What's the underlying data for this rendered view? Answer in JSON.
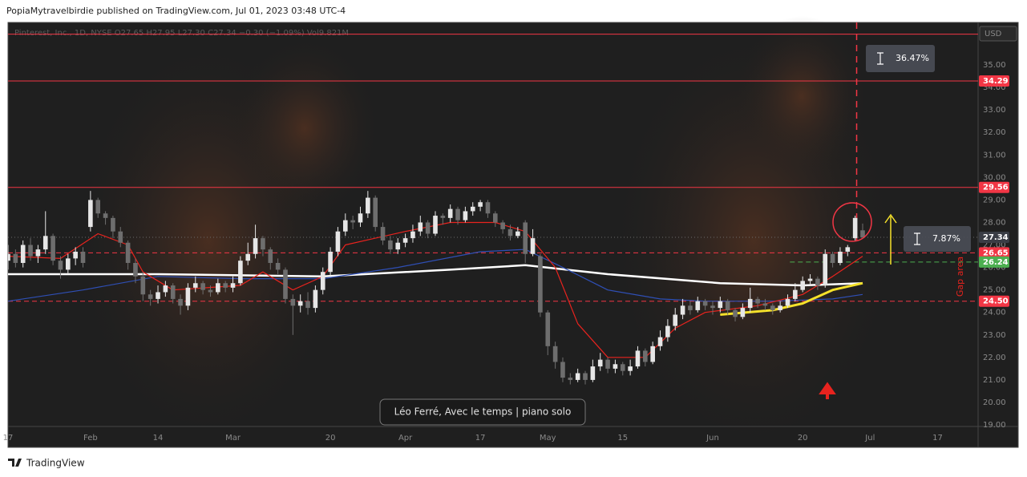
{
  "header": "PopiaMytravelbirdie published on TradingView.com, Jul 01, 2023 03:48 UTC-4",
  "footer": "TradingView",
  "chart_data": {
    "type": "candlestick",
    "legend": "Pinterest, Inc., 1D, NYSE  O27.65  H27.95  L27.30  C27.34  −0.30 (−1.09%)  Vol9.821M",
    "currency": "USD",
    "xlim": [
      0,
      129.4
    ],
    "ylim": [
      18.93,
      36.89
    ],
    "xticks": [
      {
        "value": 0,
        "label": "17"
      },
      {
        "value": 11,
        "label": "Feb"
      },
      {
        "value": 20,
        "label": "14"
      },
      {
        "value": 30,
        "label": "Mar"
      },
      {
        "value": 43,
        "label": "20"
      },
      {
        "value": 53,
        "label": "Apr"
      },
      {
        "value": 63,
        "label": "17"
      },
      {
        "value": 72,
        "label": "May"
      },
      {
        "value": 82,
        "label": "15"
      },
      {
        "value": 94,
        "label": "Jun"
      },
      {
        "value": 106,
        "label": "20"
      },
      {
        "value": 115,
        "label": "Jul"
      },
      {
        "value": 124,
        "label": "17"
      }
    ],
    "yticks": [
      {
        "value": 19,
        "label": "19.00"
      },
      {
        "value": 20,
        "label": "20.00"
      },
      {
        "value": 21,
        "label": "21.00"
      },
      {
        "value": 22,
        "label": "22.00"
      },
      {
        "value": 23,
        "label": "23.00"
      },
      {
        "value": 24,
        "label": "24.00"
      },
      {
        "value": 25,
        "label": "25.00"
      },
      {
        "value": 26,
        "label": "26.00"
      },
      {
        "value": 27,
        "label": "27.00"
      },
      {
        "value": 28,
        "label": "28.00"
      },
      {
        "value": 29,
        "label": "29.00"
      },
      {
        "value": 30,
        "label": "30.00"
      },
      {
        "value": 31,
        "label": "31.00"
      },
      {
        "value": 32,
        "label": "32.00"
      },
      {
        "value": 33,
        "label": "33.00"
      },
      {
        "value": 34,
        "label": "34.00"
      },
      {
        "value": 35,
        "label": "35.00"
      }
    ],
    "up_color": "#e6e6e6",
    "down_color": "#6e6e6e",
    "candles": [
      [
        26.3,
        27.0,
        25.9,
        26.6
      ],
      [
        26.6,
        26.8,
        26.0,
        26.2
      ],
      [
        26.2,
        27.2,
        26.0,
        27.0
      ],
      [
        27.0,
        27.3,
        26.3,
        26.5
      ],
      [
        26.5,
        27.0,
        26.2,
        26.8
      ],
      [
        26.8,
        28.5,
        26.6,
        27.4
      ],
      [
        27.4,
        27.5,
        26.1,
        26.3
      ],
      [
        26.3,
        26.5,
        25.5,
        25.9
      ],
      [
        25.9,
        26.6,
        25.7,
        26.4
      ],
      [
        26.4,
        26.9,
        26.1,
        26.7
      ],
      [
        26.7,
        26.9,
        26.0,
        26.2
      ],
      [
        27.8,
        29.4,
        27.6,
        29.0
      ],
      [
        29.0,
        29.1,
        28.2,
        28.4
      ],
      [
        28.4,
        28.5,
        27.9,
        28.2
      ],
      [
        28.2,
        28.3,
        27.3,
        27.6
      ],
      [
        27.6,
        27.8,
        26.9,
        27.1
      ],
      [
        27.1,
        27.2,
        25.9,
        26.2
      ],
      [
        26.2,
        26.4,
        25.3,
        25.6
      ],
      [
        25.6,
        25.8,
        24.5,
        24.8
      ],
      [
        24.8,
        25.0,
        24.3,
        24.6
      ],
      [
        24.6,
        25.2,
        24.4,
        24.9
      ],
      [
        24.9,
        25.4,
        24.7,
        25.2
      ],
      [
        25.2,
        25.3,
        24.4,
        24.6
      ],
      [
        24.6,
        24.8,
        23.9,
        24.3
      ],
      [
        24.3,
        25.3,
        24.1,
        25.1
      ],
      [
        25.1,
        25.6,
        24.9,
        25.3
      ],
      [
        25.3,
        25.4,
        24.8,
        25.0
      ],
      [
        25.0,
        25.2,
        24.7,
        24.9
      ],
      [
        24.9,
        25.5,
        24.8,
        25.3
      ],
      [
        25.3,
        25.4,
        24.9,
        25.1
      ],
      [
        25.1,
        25.6,
        24.9,
        25.3
      ],
      [
        25.3,
        26.5,
        25.2,
        26.3
      ],
      [
        26.3,
        27.1,
        26.1,
        26.6
      ],
      [
        26.6,
        27.9,
        26.4,
        27.3
      ],
      [
        27.3,
        27.4,
        26.5,
        26.8
      ],
      [
        26.8,
        26.9,
        25.9,
        26.2
      ],
      [
        26.2,
        26.4,
        25.7,
        25.9
      ],
      [
        25.9,
        26.0,
        24.4,
        24.6
      ],
      [
        24.6,
        24.8,
        23.0,
        24.3
      ],
      [
        24.3,
        24.8,
        24.0,
        24.5
      ],
      [
        24.5,
        24.9,
        23.9,
        24.2
      ],
      [
        24.2,
        25.2,
        24.0,
        25.0
      ],
      [
        25.0,
        26.0,
        24.8,
        25.8
      ],
      [
        25.8,
        26.9,
        25.6,
        26.7
      ],
      [
        26.7,
        27.8,
        26.5,
        27.6
      ],
      [
        27.6,
        28.4,
        27.4,
        28.1
      ],
      [
        28.1,
        28.3,
        27.7,
        28.0
      ],
      [
        28.0,
        28.7,
        27.8,
        28.4
      ],
      [
        28.4,
        29.4,
        28.2,
        29.1
      ],
      [
        29.1,
        29.2,
        27.6,
        27.8
      ],
      [
        27.8,
        28.0,
        27.0,
        27.2
      ],
      [
        27.2,
        27.4,
        26.6,
        26.8
      ],
      [
        26.8,
        27.3,
        26.6,
        27.1
      ],
      [
        27.1,
        27.5,
        26.9,
        27.3
      ],
      [
        27.3,
        27.9,
        27.1,
        27.6
      ],
      [
        27.6,
        28.3,
        27.4,
        28.0
      ],
      [
        28.0,
        28.1,
        27.3,
        27.5
      ],
      [
        27.5,
        28.5,
        27.4,
        28.3
      ],
      [
        28.3,
        28.4,
        27.9,
        28.2
      ],
      [
        28.2,
        28.8,
        28.0,
        28.6
      ],
      [
        28.6,
        28.7,
        27.9,
        28.1
      ],
      [
        28.1,
        28.7,
        28.0,
        28.5
      ],
      [
        28.5,
        28.9,
        28.3,
        28.7
      ],
      [
        28.7,
        29.0,
        28.5,
        28.9
      ],
      [
        28.9,
        29.0,
        28.2,
        28.4
      ],
      [
        28.4,
        28.5,
        27.8,
        28.0
      ],
      [
        28.0,
        28.1,
        27.5,
        27.7
      ],
      [
        27.7,
        27.9,
        27.2,
        27.4
      ],
      [
        27.4,
        27.8,
        27.3,
        27.6
      ],
      [
        28.0,
        28.1,
        26.2,
        26.6
      ],
      [
        26.6,
        27.7,
        26.5,
        27.3
      ],
      [
        26.5,
        26.6,
        23.8,
        24.0
      ],
      [
        24.0,
        24.1,
        22.1,
        22.5
      ],
      [
        22.5,
        22.7,
        21.5,
        21.8
      ],
      [
        21.8,
        22.0,
        20.9,
        21.1
      ],
      [
        21.1,
        21.3,
        20.8,
        21.0
      ],
      [
        21.0,
        21.5,
        20.9,
        21.3
      ],
      [
        21.3,
        21.4,
        20.8,
        21.0
      ],
      [
        21.0,
        21.9,
        20.9,
        21.6
      ],
      [
        21.6,
        22.2,
        21.4,
        21.9
      ],
      [
        21.9,
        22.0,
        21.3,
        21.5
      ],
      [
        21.5,
        21.9,
        21.3,
        21.7
      ],
      [
        21.7,
        21.8,
        21.2,
        21.4
      ],
      [
        21.4,
        21.9,
        21.2,
        21.6
      ],
      [
        21.6,
        22.5,
        21.5,
        22.3
      ],
      [
        22.3,
        22.4,
        21.6,
        21.8
      ],
      [
        21.8,
        22.7,
        21.7,
        22.5
      ],
      [
        22.5,
        23.2,
        22.3,
        22.9
      ],
      [
        22.9,
        23.7,
        22.7,
        23.4
      ],
      [
        23.4,
        24.2,
        23.2,
        23.9
      ],
      [
        23.9,
        24.6,
        23.7,
        24.3
      ],
      [
        24.3,
        24.5,
        23.9,
        24.1
      ],
      [
        24.1,
        24.7,
        24.0,
        24.5
      ],
      [
        24.5,
        24.6,
        24.1,
        24.3
      ],
      [
        24.3,
        24.5,
        23.9,
        24.2
      ],
      [
        24.2,
        24.7,
        24.0,
        24.5
      ],
      [
        24.5,
        24.6,
        23.9,
        24.1
      ],
      [
        24.1,
        24.2,
        23.6,
        23.8
      ],
      [
        23.8,
        24.4,
        23.7,
        24.2
      ],
      [
        24.2,
        25.1,
        24.0,
        24.6
      ],
      [
        24.6,
        24.7,
        24.2,
        24.4
      ],
      [
        24.4,
        24.6,
        24.1,
        24.3
      ],
      [
        24.3,
        24.4,
        23.9,
        24.1
      ],
      [
        24.1,
        24.5,
        24.0,
        24.3
      ],
      [
        24.3,
        24.8,
        24.2,
        24.6
      ],
      [
        24.6,
        25.3,
        24.5,
        25.0
      ],
      [
        25.0,
        25.6,
        24.9,
        25.4
      ],
      [
        25.4,
        25.7,
        25.2,
        25.5
      ],
      [
        25.5,
        25.6,
        25.0,
        25.2
      ],
      [
        25.2,
        26.8,
        25.1,
        26.6
      ],
      [
        26.6,
        26.7,
        26.0,
        26.2
      ],
      [
        26.2,
        26.9,
        26.1,
        26.7
      ],
      [
        26.7,
        27.0,
        26.5,
        26.9
      ],
      [
        27.3,
        28.3,
        27.2,
        28.2
      ],
      [
        27.65,
        27.95,
        27.3,
        27.34
      ]
    ],
    "lines": [
      {
        "color": "#ffffff",
        "width": 2.5,
        "x": [
          0,
          20,
          42,
          59,
          69,
          80,
          95,
          106,
          114
        ],
        "values": [
          25.7,
          25.7,
          25.6,
          25.9,
          26.1,
          25.7,
          25.3,
          25.2,
          25.3
        ]
      },
      {
        "color": "#2f4fb5",
        "width": 1.2,
        "x": [
          0,
          10,
          20,
          31,
          42,
          52,
          63,
          69,
          74,
          80,
          87,
          93,
          102,
          110,
          114
        ],
        "values": [
          24.5,
          25.0,
          25.6,
          25.5,
          25.5,
          26.0,
          26.7,
          26.8,
          26.0,
          25.0,
          24.6,
          24.5,
          24.5,
          24.6,
          24.8
        ]
      },
      {
        "color": "#e8231e",
        "width": 1.2,
        "x": [
          0,
          7,
          12,
          16,
          18,
          22,
          31,
          34,
          38,
          42,
          45,
          49,
          53,
          59,
          65,
          69,
          73,
          76,
          80,
          85,
          89,
          93,
          100,
          106,
          110,
          114
        ],
        "values": [
          26.5,
          26.4,
          27.5,
          27.0,
          25.8,
          25.0,
          25.2,
          25.8,
          25.0,
          25.6,
          27.0,
          27.3,
          27.6,
          28.0,
          28.0,
          27.6,
          26.0,
          23.5,
          22.0,
          22.0,
          23.3,
          24.0,
          24.3,
          24.8,
          25.6,
          26.5
        ]
      },
      {
        "color": "#f5e12a",
        "width": 3,
        "x": [
          95,
          102,
          106,
          110,
          114
        ],
        "values": [
          23.9,
          24.1,
          24.4,
          25.0,
          25.3
        ]
      }
    ],
    "levels": [
      {
        "value": 36.37,
        "color": "#f23645",
        "style": "solid"
      },
      {
        "value": 34.29,
        "color": "#f23645",
        "style": "solid",
        "tag": true
      },
      {
        "value": 29.56,
        "color": "#f23645",
        "style": "solid",
        "tag": true
      },
      {
        "value": 27.34,
        "color": "#6a6a6a",
        "style": "dotted",
        "tag": true,
        "tag_color": "#3a3d45"
      },
      {
        "value": 26.65,
        "color": "#f23645",
        "style": "dashed",
        "tag": true
      },
      {
        "value": 26.24,
        "color": "#4caf50",
        "style": "dashed",
        "tag": true,
        "x_start": 104.3
      },
      {
        "value": 24.5,
        "label": "24.50",
        "color": "#f23645",
        "style": "dashed",
        "tag": true
      }
    ],
    "vline": {
      "x": 113.2,
      "to": 27.2,
      "color": "#f23645"
    },
    "measures": [
      "36.47%",
      "7.87%"
    ],
    "gap_label": "Gap area",
    "music": "Léo Ferré, Avec le temps | piano solo"
  }
}
